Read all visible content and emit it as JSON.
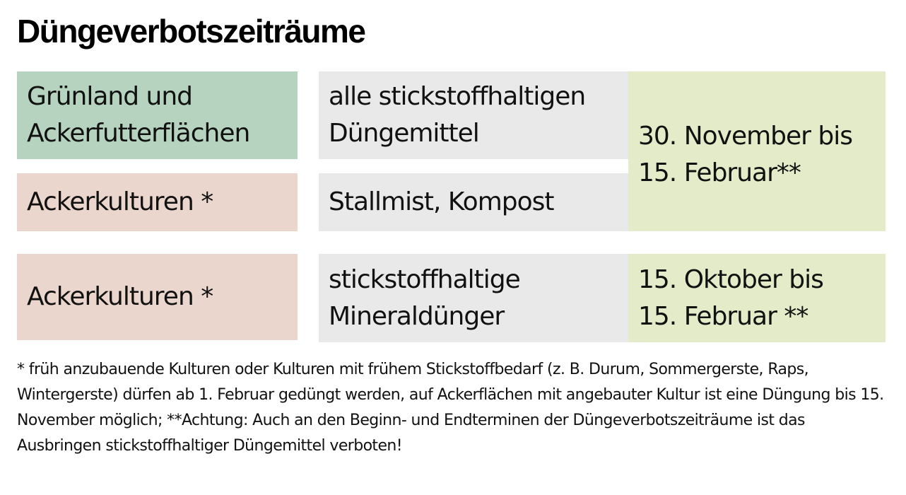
{
  "title": "Düngeverbotszeiträume",
  "rows": [
    {
      "area": [
        "Grünland und",
        "Ackerfutterflächen"
      ],
      "fertilizer": [
        "alle stickstoffhaltigen",
        "Düngemittel"
      ]
    },
    {
      "area": [
        "Ackerkulturen *"
      ],
      "fertilizer": [
        "Stallmist, Kompost"
      ]
    },
    {
      "area": [
        "Ackerkulturen *"
      ],
      "fertilizer": [
        "stickstoffhaltige",
        "Mineraldünger"
      ]
    }
  ],
  "periods": [
    [
      "30. November bis",
      "15. Februar**"
    ],
    [
      "15. Oktober bis",
      "15. Februar **"
    ]
  ],
  "footnote": "* früh anzubauende Kulturen oder Kulturen mit frühem Stickstoffbedarf (z. B. Durum, Sommergerste, Raps, Wintergerste) dürfen ab 1. Februar gedüngt werden, auf Ackerflächen mit angebauter Kultur ist eine Düngung bis 15. November möglich; **Achtung: Auch an den Beginn- und Endterminen der Düngeverbotszeiträume ist das Ausbringen stickstoffhaltiger Düngemittel verboten!",
  "colors": {
    "grassland": "#b5d3be",
    "arable": "#ead6cc",
    "fertilizer": "#e9e9e9",
    "period": "#e3ebc9"
  }
}
